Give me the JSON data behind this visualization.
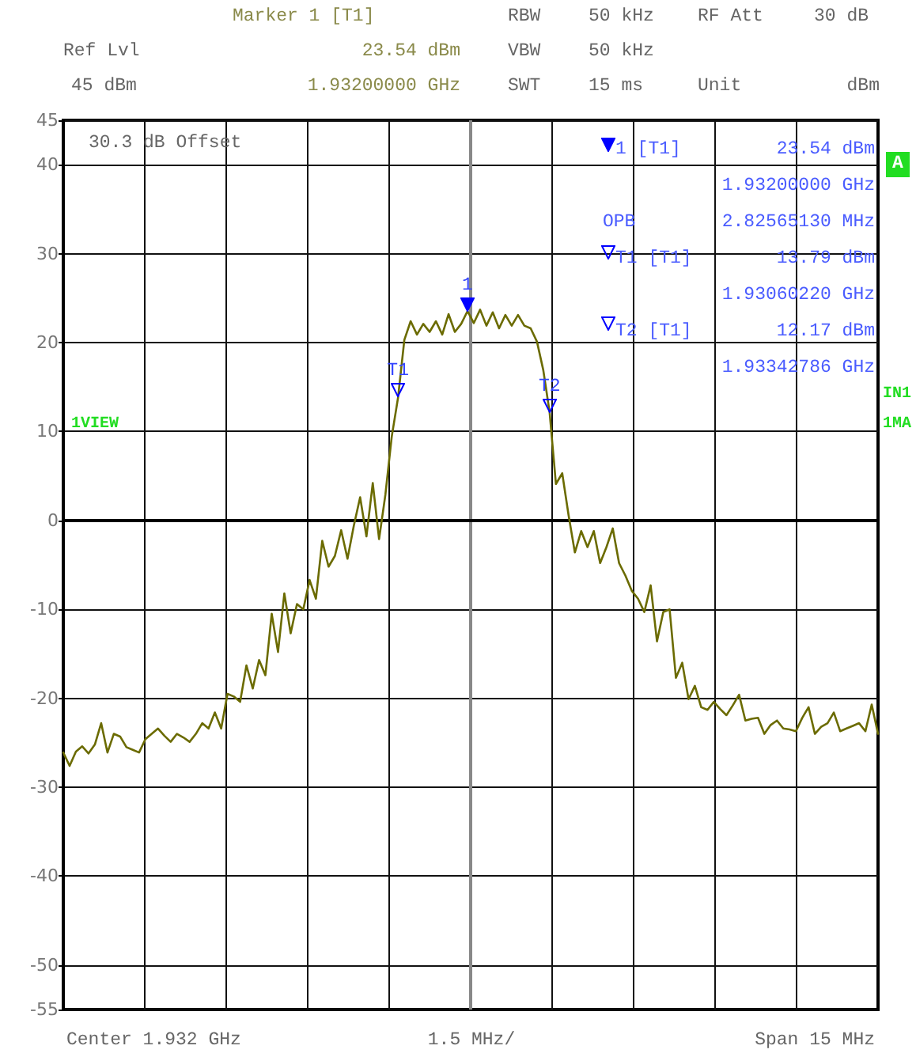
{
  "chart_data": {
    "type": "line",
    "annotations": [
      "Marker 1 [T1]",
      "RBW",
      "50 kHz",
      "RF Att",
      "30 dB",
      "Ref Lvl",
      "23.54 dBm",
      "VBW",
      "50 kHz",
      "45 dBm",
      "1.93200000 GHz",
      "SWT",
      "15 ms",
      "Unit",
      "dBm",
      "30.3 dB Offset",
      "1 [T1]",
      "23.54 dBm",
      "1.93200000 GHz",
      "OPB",
      "2.82565130 MHz",
      "T1 [T1]",
      "13.79 dBm",
      "1.93060220 GHz",
      "T2 [T1]",
      "12.17 dBm",
      "1.93342786 GHz",
      "A",
      "IN1",
      "1MA",
      "1VIEW",
      "Center 1.932 GHz",
      "1.5 MHz/",
      "Span 15 MHz",
      {
        "text": "1",
        "y": 23.54
      },
      {
        "text": "T1",
        "y": 13.79
      },
      {
        "text": "T2",
        "y": 12.17
      }
    ],
    "categories": [
      null,
      null,
      null,
      null,
      null,
      null,
      null,
      null,
      null,
      null,
      null,
      null,
      null,
      null,
      null,
      null,
      null,
      null,
      null,
      null,
      null,
      null,
      null,
      null,
      null,
      null,
      null,
      null,
      null,
      null,
      null,
      null,
      null,
      null,
      null,
      null,
      null,
      null,
      null,
      null,
      null,
      null,
      null,
      null,
      null,
      null,
      null,
      null,
      null,
      null,
      null,
      null,
      null,
      null,
      null,
      null,
      null,
      null,
      null,
      null,
      null,
      null,
      null,
      null,
      null,
      null,
      null,
      null,
      null,
      null,
      null,
      null,
      null,
      null,
      null,
      null,
      null,
      null,
      null,
      null,
      null,
      null,
      null,
      null,
      null,
      null,
      null,
      null,
      null,
      null,
      null,
      null,
      null,
      null,
      null,
      null,
      null,
      null,
      null,
      null,
      null,
      null,
      null,
      null,
      null,
      null,
      null,
      null,
      null,
      null,
      null,
      null,
      null,
      null,
      null,
      null,
      null,
      null,
      null,
      null,
      null,
      null,
      null,
      null,
      null,
      null,
      null,
      null,
      null,
      null
    ],
    "values": [
      -26.1,
      -27.6,
      -26.0,
      -25.4,
      -26.2,
      -25.2,
      -22.8,
      -26.1,
      -24.0,
      -24.3,
      -25.5,
      -25.8,
      -26.1,
      -24.6,
      -24.0,
      -23.4,
      -24.2,
      -24.9,
      -24.0,
      -24.4,
      -24.9,
      -24.0,
      -22.8,
      -23.4,
      -21.6,
      -23.4,
      -19.5,
      -19.8,
      -20.4,
      -16.3,
      -18.9,
      -15.7,
      -17.4,
      -10.5,
      -14.8,
      -8.2,
      -12.7,
      -9.4,
      -10.0,
      -6.7,
      -8.8,
      -2.3,
      -5.2,
      -4.0,
      -1.1,
      -4.3,
      -0.6,
      2.6,
      -1.8,
      4.2,
      -2.1,
      2.9,
      9.4,
      13.79,
      20.3,
      22.4,
      20.9,
      22.1,
      21.2,
      22.4,
      20.9,
      23.2,
      21.2,
      22.1,
      23.54,
      22.2,
      23.7,
      21.9,
      23.4,
      21.6,
      23.1,
      21.9,
      23.1,
      21.9,
      21.6,
      20.1,
      16.9,
      12.17,
      4.1,
      5.3,
      0.6,
      -3.6,
      -1.2,
      -3.0,
      -1.2,
      -4.8,
      -3.0,
      -0.9,
      -4.8,
      -6.2,
      -7.9,
      -8.8,
      -10.3,
      -7.3,
      -13.6,
      -10.3,
      -10.0,
      -17.7,
      -16.0,
      -20.1,
      -18.6,
      -21.0,
      -21.3,
      -20.4,
      -21.2,
      -21.9,
      -20.8,
      -19.6,
      -22.5,
      -22.3,
      -22.2,
      -24.0,
      -23.0,
      -22.5,
      -23.4,
      -23.5,
      -23.7,
      -22.2,
      -21.0,
      -24.0,
      -23.2,
      -22.8,
      -21.6,
      -23.7,
      -23.4,
      -23.1,
      -22.8,
      -23.7,
      -20.7,
      -24.0
    ],
    "color": "#6b6b00",
    "ylim": [
      -55,
      45
    ],
    "yticks": [
      45,
      40,
      30,
      20,
      10,
      0,
      -10,
      -20,
      -30,
      -40,
      -50,
      -55
    ],
    "tick_labels": "y",
    "grid": true,
    "line_style": "solid"
  }
}
